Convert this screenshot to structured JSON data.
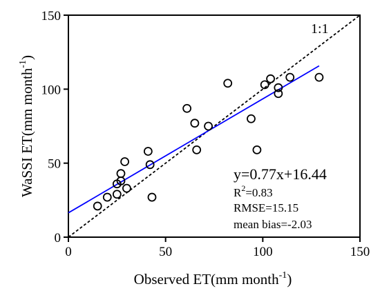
{
  "chart_data": {
    "type": "scatter",
    "xlabel": "Observed ET(mm month",
    "xlabel_sup": "-1",
    "xlabel_end": ")",
    "ylabel": "WaSSI ET(mm month",
    "ylabel_sup": "-1",
    "ylabel_end": ")",
    "xlim": [
      0,
      150
    ],
    "ylim": [
      0,
      150
    ],
    "xticks": [
      0,
      50,
      100,
      150
    ],
    "yticks": [
      0,
      50,
      100,
      150
    ],
    "grid": false,
    "points": [
      {
        "x": 15,
        "y": 21
      },
      {
        "x": 20,
        "y": 27
      },
      {
        "x": 25,
        "y": 36
      },
      {
        "x": 25,
        "y": 29
      },
      {
        "x": 27,
        "y": 43
      },
      {
        "x": 27,
        "y": 38
      },
      {
        "x": 29,
        "y": 51
      },
      {
        "x": 30,
        "y": 33
      },
      {
        "x": 41,
        "y": 58
      },
      {
        "x": 42,
        "y": 49
      },
      {
        "x": 43,
        "y": 27
      },
      {
        "x": 61,
        "y": 87
      },
      {
        "x": 65,
        "y": 77
      },
      {
        "x": 66,
        "y": 59
      },
      {
        "x": 72,
        "y": 75
      },
      {
        "x": 82,
        "y": 104
      },
      {
        "x": 94,
        "y": 80
      },
      {
        "x": 97,
        "y": 59
      },
      {
        "x": 101,
        "y": 103
      },
      {
        "x": 104,
        "y": 107
      },
      {
        "x": 108,
        "y": 101
      },
      {
        "x": 108,
        "y": 97
      },
      {
        "x": 114,
        "y": 108
      },
      {
        "x": 129,
        "y": 108
      }
    ],
    "fit_line": {
      "slope": 0.77,
      "intercept": 16.44,
      "x_range": [
        0,
        129
      ],
      "color": "#0000ff"
    },
    "reference_line": {
      "label": "1:1",
      "color": "#000000"
    },
    "annotations": {
      "equation": "y=0.77x+16.44",
      "r2_prefix": "R",
      "r2_sup": "2",
      "r2_suffix": "=0.83",
      "rmse": "RMSE=15.15",
      "bias": "mean bias=-2.03"
    }
  }
}
